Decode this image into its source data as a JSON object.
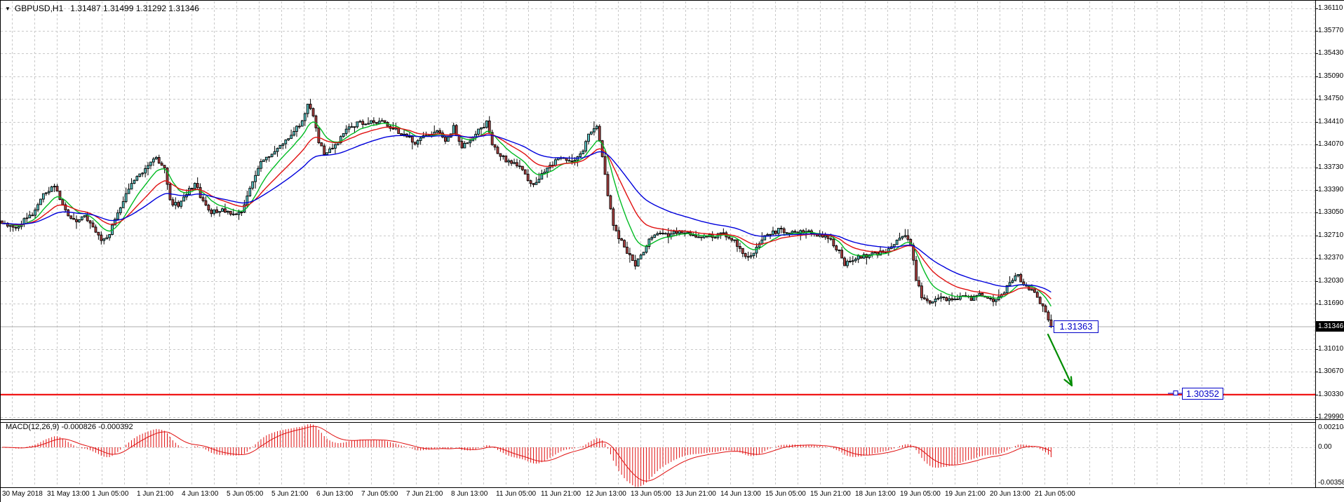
{
  "window": {
    "bg": "#FFFFFF",
    "border": "#000000"
  },
  "header": {
    "collapse_glyph": "▼",
    "title": "GBPUSD,H1",
    "ohlc_text": "1.31487 1.31499 1.31292 1.31346",
    "open": "1.31487",
    "high": "1.31499",
    "low": "1.31292",
    "close": "1.31346"
  },
  "price_axis": {
    "labels": [
      {
        "text": "1.36110",
        "price": 1.3611
      },
      {
        "text": "1.35770",
        "price": 1.3577
      },
      {
        "text": "1.35430",
        "price": 1.3543
      },
      {
        "text": "1.35090",
        "price": 1.3509
      },
      {
        "text": "1.34750",
        "price": 1.3475
      },
      {
        "text": "1.34410",
        "price": 1.3441
      },
      {
        "text": "1.34070",
        "price": 1.3407
      },
      {
        "text": "1.33730",
        "price": 1.3373
      },
      {
        "text": "1.33390",
        "price": 1.3339
      },
      {
        "text": "1.33050",
        "price": 1.3305
      },
      {
        "text": "1.32710",
        "price": 1.3271
      },
      {
        "text": "1.32370",
        "price": 1.3237
      },
      {
        "text": "1.32030",
        "price": 1.3203
      },
      {
        "text": "1.31690",
        "price": 1.3169
      },
      {
        "text": "1.31010",
        "price": 1.3101
      },
      {
        "text": "1.30670",
        "price": 1.3067
      },
      {
        "text": "1.30330",
        "price": 1.3033
      },
      {
        "text": "1.29990",
        "price": 1.2999
      }
    ],
    "current_text": "1.31346",
    "current_price": 1.31346
  },
  "time_axis": {
    "labels": [
      "30 May 2018",
      "31 May 13:00",
      "1 Jun 05:00",
      "1 Jun 21:00",
      "4 Jun 13:00",
      "5 Jun 05:00",
      "5 Jun 21:00",
      "6 Jun 13:00",
      "7 Jun 05:00",
      "7 Jun 21:00",
      "8 Jun 13:00",
      "11 Jun 05:00",
      "11 Jun 21:00",
      "12 Jun 13:00",
      "13 Jun 05:00",
      "13 Jun 21:00",
      "14 Jun 13:00",
      "15 Jun 05:00",
      "15 Jun 21:00",
      "18 Jun 13:00",
      "19 Jun 05:00",
      "19 Jun 21:00",
      "20 Jun 13:00",
      "21 Jun 05:00"
    ]
  },
  "macd": {
    "label_text": "MACD(12,26,9) -0.000826 -0.000392",
    "name": "MACD",
    "params": [
      12,
      26,
      9
    ],
    "main_value": -0.000826,
    "signal_value": -0.000392,
    "axis_labels": [
      {
        "text": "0.002104",
        "value": 0.002104
      },
      {
        "text": "0.00",
        "value": 0.0
      },
      {
        "text": "-0.003582",
        "value": -0.003582
      }
    ]
  },
  "chart_data": {
    "type": "candlestick",
    "instrument": "GBPUSD",
    "timeframe": "H1",
    "title": "GBPUSD,H1 1.31487 1.31499 1.31292 1.31346",
    "y_axis": {
      "min": 1.2999,
      "max": 1.3611,
      "step": 0.0034,
      "grid": true
    },
    "x_axis": {
      "visible_candles": 382,
      "label_step_hours": 16
    },
    "last_close": 1.31346,
    "price_path_anchors": [
      [
        0,
        1.3287
      ],
      [
        5,
        1.3284
      ],
      [
        11,
        1.3303
      ],
      [
        15,
        1.3331
      ],
      [
        19,
        1.3345
      ],
      [
        23,
        1.3307
      ],
      [
        27,
        1.3293
      ],
      [
        30,
        1.3301
      ],
      [
        33,
        1.3281
      ],
      [
        36,
        1.3262
      ],
      [
        39,
        1.3274
      ],
      [
        43,
        1.3314
      ],
      [
        47,
        1.3349
      ],
      [
        51,
        1.3366
      ],
      [
        56,
        1.3387
      ],
      [
        59,
        1.3372
      ],
      [
        61,
        1.3322
      ],
      [
        64,
        1.3316
      ],
      [
        68,
        1.3339
      ],
      [
        70,
        1.335
      ],
      [
        73,
        1.3321
      ],
      [
        76,
        1.3306
      ],
      [
        80,
        1.3309
      ],
      [
        84,
        1.33
      ],
      [
        87,
        1.3305
      ],
      [
        90,
        1.334
      ],
      [
        94,
        1.3379
      ],
      [
        98,
        1.3396
      ],
      [
        102,
        1.3409
      ],
      [
        106,
        1.3426
      ],
      [
        109,
        1.3441
      ],
      [
        111,
        1.3469
      ],
      [
        113,
        1.3453
      ],
      [
        115,
        1.3411
      ],
      [
        117,
        1.3393
      ],
      [
        120,
        1.3401
      ],
      [
        123,
        1.3417
      ],
      [
        126,
        1.3433
      ],
      [
        130,
        1.3439
      ],
      [
        134,
        1.3441
      ],
      [
        139,
        1.3439
      ],
      [
        142,
        1.3431
      ],
      [
        146,
        1.3421
      ],
      [
        150,
        1.3411
      ],
      [
        154,
        1.3419
      ],
      [
        158,
        1.3429
      ],
      [
        161,
        1.3412
      ],
      [
        164,
        1.3433
      ],
      [
        167,
        1.3401
      ],
      [
        170,
        1.3416
      ],
      [
        174,
        1.3431
      ],
      [
        176,
        1.3439
      ],
      [
        178,
        1.3406
      ],
      [
        181,
        1.3391
      ],
      [
        184,
        1.3381
      ],
      [
        188,
        1.3373
      ],
      [
        192,
        1.3346
      ],
      [
        196,
        1.3361
      ],
      [
        200,
        1.3379
      ],
      [
        204,
        1.3389
      ],
      [
        207,
        1.3381
      ],
      [
        211,
        1.3396
      ],
      [
        213,
        1.3424
      ],
      [
        216,
        1.3431
      ],
      [
        218,
        1.3392
      ],
      [
        220,
        1.3332
      ],
      [
        222,
        1.3287
      ],
      [
        224,
        1.3269
      ],
      [
        227,
        1.3246
      ],
      [
        230,
        1.3226
      ],
      [
        232,
        1.3241
      ],
      [
        235,
        1.3263
      ],
      [
        238,
        1.3276
      ],
      [
        242,
        1.3271
      ],
      [
        246,
        1.3279
      ],
      [
        249,
        1.3273
      ],
      [
        254,
        1.3271
      ],
      [
        258,
        1.3269
      ],
      [
        262,
        1.3273
      ],
      [
        266,
        1.3263
      ],
      [
        269,
        1.3247
      ],
      [
        271,
        1.3236
      ],
      [
        274,
        1.3253
      ],
      [
        277,
        1.3271
      ],
      [
        282,
        1.3279
      ],
      [
        288,
        1.3273
      ],
      [
        293,
        1.3281
      ],
      [
        296,
        1.3271
      ],
      [
        300,
        1.3269
      ],
      [
        304,
        1.3246
      ],
      [
        306,
        1.3226
      ],
      [
        309,
        1.3236
      ],
      [
        313,
        1.3241
      ],
      [
        317,
        1.3243
      ],
      [
        321,
        1.3249
      ],
      [
        324,
        1.3261
      ],
      [
        328,
        1.3269
      ],
      [
        330,
        1.3256
      ],
      [
        332,
        1.3206
      ],
      [
        334,
        1.3179
      ],
      [
        337,
        1.3173
      ],
      [
        341,
        1.3181
      ],
      [
        345,
        1.3173
      ],
      [
        349,
        1.3181
      ],
      [
        352,
        1.3176
      ],
      [
        356,
        1.3183
      ],
      [
        360,
        1.3173
      ],
      [
        363,
        1.3181
      ],
      [
        366,
        1.3201
      ],
      [
        369,
        1.3211
      ],
      [
        371,
        1.3199
      ],
      [
        375,
        1.3186
      ],
      [
        377,
        1.3171
      ],
      [
        380,
        1.3148
      ],
      [
        381,
        1.31346
      ]
    ],
    "moving_averages": [
      {
        "name": "ma-fast",
        "period": 10,
        "color": "#00BB22"
      },
      {
        "name": "ma-mid",
        "period": 21,
        "color": "#E01010"
      },
      {
        "name": "ma-slow",
        "period": 42,
        "color": "#0000DC"
      }
    ],
    "macd_scale": {
      "max": 0.002104,
      "min": -0.003582
    },
    "levels": {
      "red_line_price": 1.3033,
      "bid_price": 1.31346
    },
    "annotations": {
      "price_tag": {
        "text": "1.31363",
        "price": 1.31363
      },
      "target_tag": {
        "text": "1.30352",
        "price": 1.30352
      },
      "arrow": {
        "from_price": 1.3135,
        "to_price": 1.3043,
        "color": "#008C00"
      }
    },
    "colors": {
      "bull": "#5AC4C4",
      "bear": "#AE4242",
      "wick": "#000000",
      "grid": "#C9C9C9",
      "macd_bar": "#E01010",
      "red_line": "#F01414",
      "bid_line": "#ADADAD",
      "annotation_blue": "#0000C8",
      "arrow_green": "#008C00",
      "axis_text": "#000000",
      "bid_box_bg": "#000000",
      "bid_box_text": "#FFFFFF"
    },
    "render_seed": 20180621
  }
}
